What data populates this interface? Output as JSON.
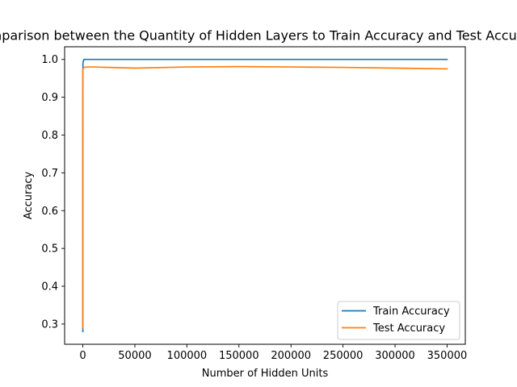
{
  "chart_data": {
    "type": "line",
    "title": "Comparison between the Quantity of Hidden Layers to Train Accuracy and Test Accuracy",
    "xlabel": "Number of Hidden Units",
    "ylabel": "Accuracy",
    "xlim": [
      -17500,
      367500
    ],
    "ylim": [
      0.2465,
      1.0335
    ],
    "xticks": [
      0,
      50000,
      100000,
      150000,
      200000,
      250000,
      300000,
      350000
    ],
    "xtick_labels": [
      "0",
      "50000",
      "100000",
      "150000",
      "200000",
      "250000",
      "300000",
      "350000"
    ],
    "yticks": [
      0.3,
      0.4,
      0.5,
      0.6,
      0.7,
      0.8,
      0.9,
      1.0
    ],
    "ytick_labels": [
      "0.3",
      "0.4",
      "0.5",
      "0.6",
      "0.7",
      "0.8",
      "0.9",
      "1.0"
    ],
    "grid": false,
    "legend": {
      "location": "lower-right",
      "entries": [
        "Train Accuracy",
        "Test Accuracy"
      ]
    },
    "series": [
      {
        "name": "Train Accuracy",
        "color": "#1f77b4",
        "x": [
          1,
          10,
          100,
          1000,
          5000,
          10000,
          50000,
          100000,
          150000,
          200000,
          250000,
          300000,
          350000
        ],
        "y": [
          0.28,
          0.85,
          0.99,
          1.0,
          1.0,
          1.0,
          1.0,
          1.0,
          1.0,
          1.0,
          1.0,
          1.0,
          1.0
        ]
      },
      {
        "name": "Test Accuracy",
        "color": "#ff7f0e",
        "x": [
          1,
          10,
          100,
          1000,
          5000,
          10000,
          50000,
          100000,
          150000,
          200000,
          250000,
          300000,
          350000
        ],
        "y": [
          0.29,
          0.83,
          0.975,
          0.979,
          0.98,
          0.98,
          0.977,
          0.98,
          0.981,
          0.98,
          0.979,
          0.977,
          0.975
        ]
      }
    ]
  }
}
